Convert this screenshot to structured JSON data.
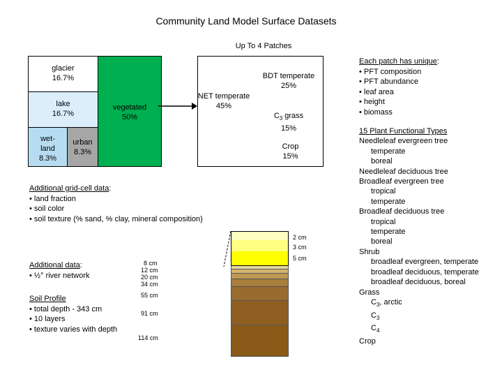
{
  "title": "Community Land Model Surface Datasets",
  "subtitle": "Up To 4 Patches",
  "gridcell": {
    "glacier": [
      "glacier",
      "16.7%"
    ],
    "lake": [
      "lake",
      "16.7%"
    ],
    "wetland": [
      "wet-",
      "land",
      "8.3%"
    ],
    "urban": [
      "urban",
      "8.3%"
    ],
    "vegetated": [
      "vegetated",
      "50%"
    ],
    "net": [
      "NET temperate",
      "45%"
    ],
    "bdt": [
      "BDT temperate",
      "25%"
    ],
    "c3grass": {
      "prefix": "C",
      "sub": "3",
      "suffix": " grass",
      "pct": "15%"
    },
    "crop": [
      "Crop",
      "15%"
    ]
  },
  "additional_gridcell": {
    "heading": "Additional grid-cell data",
    "colon": ":",
    "items": [
      "• land fraction",
      "• soil color",
      "• soil texture (% sand, % clay, mineral composition)"
    ]
  },
  "additional_data": {
    "heading": "Additional data",
    "colon": ":",
    "items": [
      "• ½° river network"
    ]
  },
  "soil_profile": {
    "heading": "Soil Profile",
    "items": [
      "• total depth - 343 cm",
      "• 10 layers",
      "• texture varies with depth"
    ]
  },
  "soil_layers": {
    "right_labels": [
      "2 cm",
      "3 cm",
      "5 cm"
    ],
    "left_labels": [
      "8 cm",
      "12 cm",
      "20 cm",
      "34 cm",
      "55 cm",
      "91 cm",
      "114 cm"
    ]
  },
  "patch_unique": {
    "heading": "Each patch has unique",
    "colon": ":",
    "items": [
      "• PFT composition",
      "• PFT abundance",
      "• leaf area",
      "• height",
      "• biomass"
    ]
  },
  "pft": {
    "heading": "15 Plant Functional Types",
    "lines": [
      {
        "text": "Needleleaf evergreen tree",
        "indent": 0
      },
      {
        "text": "temperate",
        "indent": 1
      },
      {
        "text": "boreal",
        "indent": 1
      },
      {
        "text": "Needleleaf deciduous tree",
        "indent": 0
      },
      {
        "text": "Broadleaf evergreen tree",
        "indent": 0
      },
      {
        "text": "tropical",
        "indent": 1
      },
      {
        "text": "temperate",
        "indent": 1
      },
      {
        "text": "Broadleaf deciduous tree",
        "indent": 0
      },
      {
        "text": "tropical",
        "indent": 1
      },
      {
        "text": "temperate",
        "indent": 1
      },
      {
        "text": "boreal",
        "indent": 1
      },
      {
        "text": "Shrub",
        "indent": 0
      },
      {
        "text": "broadleaf evergreen, temperate",
        "indent": 1
      },
      {
        "text": "broadleaf deciduous, temperate",
        "indent": 1
      },
      {
        "text": "broadleaf deciduous, boreal",
        "indent": 1
      },
      {
        "text": "Grass",
        "indent": 0
      },
      {
        "text": "C",
        "sub": "3",
        "suffix": ", arctic",
        "indent": 1
      },
      {
        "text": "C",
        "sub": "3",
        "suffix": "",
        "indent": 1
      },
      {
        "text": "C",
        "sub": "4",
        "suffix": "",
        "indent": 1
      },
      {
        "text": "Crop",
        "indent": 0
      }
    ]
  },
  "colors": {
    "vegetated": "#00b050",
    "lake": "#dbeefa",
    "wetland": "#b7dcf2",
    "urban": "#a6a6a6",
    "soil_top": "#ffffc0",
    "soil_yellow": "#ffff00"
  }
}
